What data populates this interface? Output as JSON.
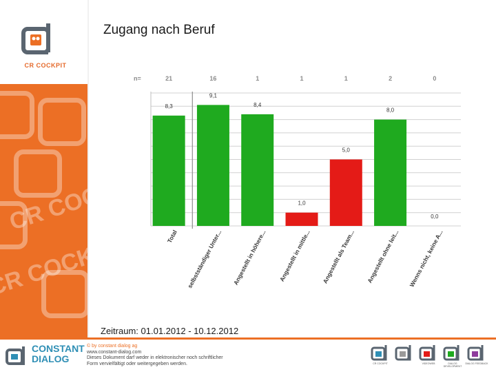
{
  "header": {
    "logo_text": "CR COCKPIT",
    "title": "Zugang nach Beruf"
  },
  "period": "Zeitraum: 01.01.2012 - 10.12.2012",
  "sidebar": {
    "watermark": "CR COCKPIT"
  },
  "colors": {
    "green": "#1faa1f",
    "red": "#e41b17",
    "orange": "#ec6f25",
    "blue": "#2f8fb5"
  },
  "chart_data": {
    "type": "bar",
    "n_label": "n=",
    "categories": [
      "Total",
      "selbstständiger Unter...",
      "Angestellt in höhere...",
      "Angestellt in mittle...",
      "Angestellt als Team...",
      "Angestellt ohne leit...",
      "Wenns nicht, keine A..."
    ],
    "n_values": [
      "21",
      "16",
      "1",
      "1",
      "1",
      "2",
      "0"
    ],
    "values": [
      8.3,
      9.1,
      8.4,
      1.0,
      5.0,
      8.0,
      0.0
    ],
    "value_labels": [
      "8,3",
      "9,1",
      "8,4",
      "1,0",
      "5,0",
      "8,0",
      "0,0"
    ],
    "bar_colors": [
      "#1faa1f",
      "#1faa1f",
      "#1faa1f",
      "#e41b17",
      "#e41b17",
      "#1faa1f",
      "#1faa1f"
    ],
    "ylim": [
      0,
      10
    ],
    "grid": true,
    "legend": "none"
  },
  "footer": {
    "brand_line1": "CONSTANT",
    "brand_line2": "DIALOG",
    "copy_lines": [
      "© by constant dialog ag",
      "www.constant-dialog.com",
      "Dieses Dokument darf weder in elektronischer noch schriftlicher",
      "Form vervielfältigt oder weitergegeben werden."
    ],
    "products": [
      {
        "label": "CR COCKPIT",
        "color": "#2f8fb5"
      },
      {
        "label": "",
        "color": "#9a9a9a"
      },
      {
        "label": "VIDEOWEB",
        "color": "#e41b17"
      },
      {
        "label": "DIALOG DEVELOPMENT",
        "color": "#1faa1f"
      },
      {
        "label": "DIALOG FEEDBACK",
        "color": "#8e3b9c"
      }
    ]
  }
}
